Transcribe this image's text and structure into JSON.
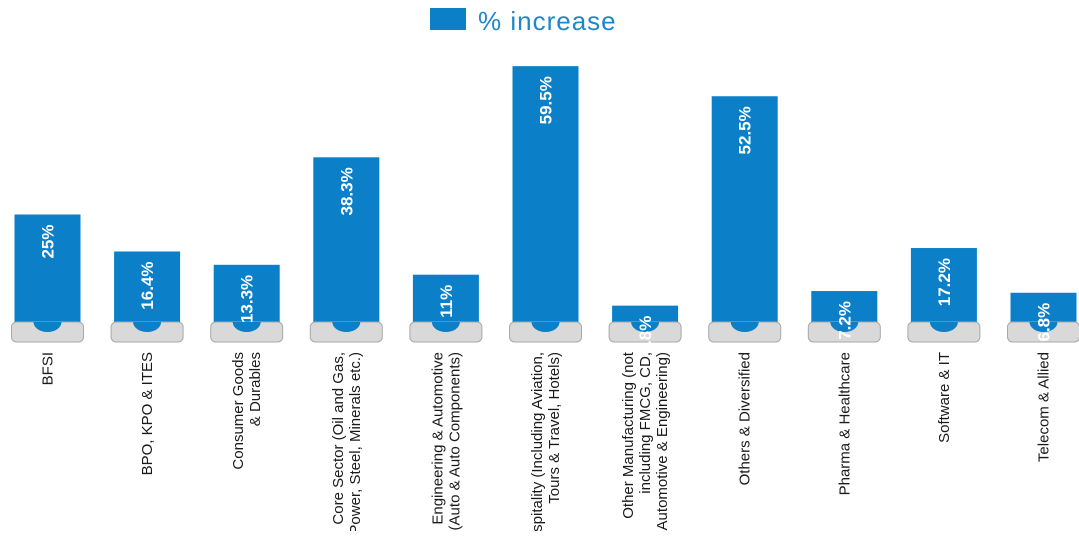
{
  "chart_data": {
    "type": "bar",
    "legend": {
      "label": "% increase",
      "position": "top-center"
    },
    "categories": [
      [
        "BFSI"
      ],
      [
        "BPO, KPO & ITES"
      ],
      [
        "Consumer Goods",
        "& Durables"
      ],
      [
        "Core Sector (Oil and Gas,",
        "Power, Steel, Minerals etc.)"
      ],
      [
        "Engineering & Automotive",
        "(Auto & Auto Components)"
      ],
      [
        "Hospitality (Including Aviation,",
        "Tours & Travel, Hotels)"
      ],
      [
        "Other Manufacturing (not",
        "including FMCG, CD,",
        "Automotive & Engineering)"
      ],
      [
        "Others & Diversified"
      ],
      [
        "Pharma & Healthcare"
      ],
      [
        "Software & IT"
      ],
      [
        "Telecom & Allied"
      ]
    ],
    "series": [
      {
        "name": "% increase",
        "values": [
          25,
          16.4,
          13.3,
          38.3,
          11,
          59.5,
          3.8,
          52.5,
          7.2,
          17.2,
          6.8
        ],
        "labels": [
          "25%",
          "16.4%",
          "13.3%",
          "38.3%",
          "11%",
          "59.5%",
          "3.8%",
          "52.5%",
          "7.2%",
          "17.2%",
          "6.8%"
        ]
      }
    ],
    "ylim": [
      0,
      60
    ],
    "grid": false,
    "colors": {
      "bar": "#0b7fc7",
      "base": "#d9d9d9",
      "base_shadow": "#a9a9a9",
      "legend_text": "#1f87c8"
    }
  }
}
